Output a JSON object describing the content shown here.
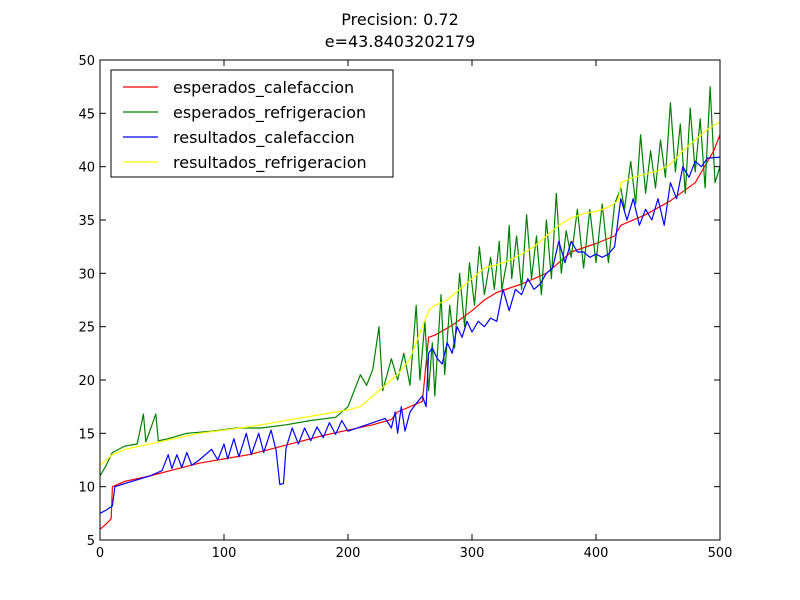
{
  "chart_data": {
    "type": "line",
    "title": "Precision: 0.72",
    "subtitle": "e=43.8403202179",
    "xlabel": "",
    "ylabel": "",
    "xlim": [
      0,
      500
    ],
    "ylim": [
      5,
      50
    ],
    "xticks": [
      0,
      100,
      200,
      300,
      400,
      500
    ],
    "yticks": [
      5,
      10,
      15,
      20,
      25,
      30,
      35,
      40,
      45,
      50
    ],
    "grid": false,
    "legend_position": "top-left",
    "series": [
      {
        "name": "esperados_calefaccion",
        "color": "#ff0000",
        "points": [
          [
            0,
            6.0
          ],
          [
            5,
            6.5
          ],
          [
            9,
            7.0
          ],
          [
            10,
            10.0
          ],
          [
            20,
            10.5
          ],
          [
            40,
            11.0
          ],
          [
            60,
            11.6
          ],
          [
            80,
            12.2
          ],
          [
            100,
            12.6
          ],
          [
            120,
            13.0
          ],
          [
            140,
            13.6
          ],
          [
            160,
            14.2
          ],
          [
            180,
            14.8
          ],
          [
            200,
            15.3
          ],
          [
            220,
            15.8
          ],
          [
            235,
            16.3
          ],
          [
            240,
            17.0
          ],
          [
            250,
            17.5
          ],
          [
            260,
            18.0
          ],
          [
            265,
            24.0
          ],
          [
            270,
            24.2
          ],
          [
            285,
            25.2
          ],
          [
            300,
            26.5
          ],
          [
            310,
            27.5
          ],
          [
            320,
            28.2
          ],
          [
            340,
            29.0
          ],
          [
            360,
            30.0
          ],
          [
            375,
            31.5
          ],
          [
            380,
            32.0
          ],
          [
            400,
            32.8
          ],
          [
            415,
            33.5
          ],
          [
            420,
            34.5
          ],
          [
            440,
            35.5
          ],
          [
            460,
            36.8
          ],
          [
            480,
            38.5
          ],
          [
            495,
            41.5
          ],
          [
            500,
            43.0
          ]
        ]
      },
      {
        "name": "esperados_refrigeracion",
        "color": "#008000",
        "points": [
          [
            0,
            11.0
          ],
          [
            5,
            12.0
          ],
          [
            10,
            13.2
          ],
          [
            20,
            13.8
          ],
          [
            30,
            14.0
          ],
          [
            35,
            16.8
          ],
          [
            37,
            14.2
          ],
          [
            45,
            16.8
          ],
          [
            47,
            14.3
          ],
          [
            55,
            14.5
          ],
          [
            70,
            15.0
          ],
          [
            90,
            15.2
          ],
          [
            110,
            15.5
          ],
          [
            130,
            15.5
          ],
          [
            150,
            15.8
          ],
          [
            170,
            16.2
          ],
          [
            190,
            16.5
          ],
          [
            200,
            17.5
          ],
          [
            205,
            19.0
          ],
          [
            210,
            20.5
          ],
          [
            215,
            19.5
          ],
          [
            220,
            21.0
          ],
          [
            225,
            25.0
          ],
          [
            228,
            19.0
          ],
          [
            235,
            22.0
          ],
          [
            240,
            20.0
          ],
          [
            245,
            22.5
          ],
          [
            250,
            19.5
          ],
          [
            255,
            27.0
          ],
          [
            258,
            20.0
          ],
          [
            262,
            25.5
          ],
          [
            265,
            19.0
          ],
          [
            268,
            23.5
          ],
          [
            270,
            18.5
          ],
          [
            275,
            28.0
          ],
          [
            278,
            20.5
          ],
          [
            282,
            27.0
          ],
          [
            286,
            23.0
          ],
          [
            290,
            30.0
          ],
          [
            294,
            25.0
          ],
          [
            298,
            31.0
          ],
          [
            302,
            27.0
          ],
          [
            306,
            32.5
          ],
          [
            310,
            28.0
          ],
          [
            315,
            31.5
          ],
          [
            318,
            28.5
          ],
          [
            322,
            33.0
          ],
          [
            324,
            28.5
          ],
          [
            328,
            31.0
          ],
          [
            330,
            34.5
          ],
          [
            332,
            29.5
          ],
          [
            336,
            33.5
          ],
          [
            340,
            28.5
          ],
          [
            344,
            35.5
          ],
          [
            348,
            29.5
          ],
          [
            352,
            33.5
          ],
          [
            356,
            28.0
          ],
          [
            360,
            35.0
          ],
          [
            364,
            29.5
          ],
          [
            368,
            37.5
          ],
          [
            372,
            30.0
          ],
          [
            376,
            34.0
          ],
          [
            380,
            31.5
          ],
          [
            385,
            36.0
          ],
          [
            390,
            30.5
          ],
          [
            395,
            36.0
          ],
          [
            400,
            31.0
          ],
          [
            405,
            36.5
          ],
          [
            410,
            31.0
          ],
          [
            415,
            36.5
          ],
          [
            420,
            38.0
          ],
          [
            423,
            36.0
          ],
          [
            428,
            40.5
          ],
          [
            432,
            36.5
          ],
          [
            436,
            43.0
          ],
          [
            440,
            37.5
          ],
          [
            444,
            41.5
          ],
          [
            448,
            38.0
          ],
          [
            452,
            42.5
          ],
          [
            456,
            39.0
          ],
          [
            460,
            46.0
          ],
          [
            464,
            39.5
          ],
          [
            468,
            44.0
          ],
          [
            472,
            37.5
          ],
          [
            476,
            45.5
          ],
          [
            480,
            39.5
          ],
          [
            484,
            44.5
          ],
          [
            488,
            38.0
          ],
          [
            492,
            47.5
          ],
          [
            496,
            38.5
          ],
          [
            500,
            40.0
          ]
        ]
      },
      {
        "name": "resultados_calefaccion",
        "color": "#0000ff",
        "points": [
          [
            0,
            7.5
          ],
          [
            5,
            7.8
          ],
          [
            10,
            8.2
          ],
          [
            12,
            10.0
          ],
          [
            20,
            10.3
          ],
          [
            40,
            11.0
          ],
          [
            50,
            11.5
          ],
          [
            55,
            13.0
          ],
          [
            58,
            11.7
          ],
          [
            62,
            13.0
          ],
          [
            66,
            11.8
          ],
          [
            70,
            13.2
          ],
          [
            74,
            12.0
          ],
          [
            80,
            12.5
          ],
          [
            90,
            13.5
          ],
          [
            95,
            12.5
          ],
          [
            100,
            14.0
          ],
          [
            103,
            12.6
          ],
          [
            108,
            14.5
          ],
          [
            112,
            12.8
          ],
          [
            118,
            15.0
          ],
          [
            122,
            13.0
          ],
          [
            128,
            15.0
          ],
          [
            132,
            13.2
          ],
          [
            138,
            15.3
          ],
          [
            142,
            13.4
          ],
          [
            145,
            10.2
          ],
          [
            148,
            10.3
          ],
          [
            150,
            13.6
          ],
          [
            155,
            15.5
          ],
          [
            160,
            14.0
          ],
          [
            165,
            15.5
          ],
          [
            170,
            14.3
          ],
          [
            175,
            15.6
          ],
          [
            180,
            14.6
          ],
          [
            185,
            16.0
          ],
          [
            190,
            14.9
          ],
          [
            195,
            16.2
          ],
          [
            200,
            15.2
          ],
          [
            210,
            15.6
          ],
          [
            220,
            16.0
          ],
          [
            230,
            16.4
          ],
          [
            235,
            15.5
          ],
          [
            238,
            17.0
          ],
          [
            240,
            15.0
          ],
          [
            243,
            17.5
          ],
          [
            246,
            15.2
          ],
          [
            250,
            17.0
          ],
          [
            255,
            17.8
          ],
          [
            260,
            18.5
          ],
          [
            263,
            17.5
          ],
          [
            265,
            22.5
          ],
          [
            268,
            23.0
          ],
          [
            272,
            22.0
          ],
          [
            276,
            21.5
          ],
          [
            280,
            23.5
          ],
          [
            284,
            22.5
          ],
          [
            288,
            25.0
          ],
          [
            292,
            24.0
          ],
          [
            296,
            25.5
          ],
          [
            300,
            24.5
          ],
          [
            305,
            25.5
          ],
          [
            310,
            25.0
          ],
          [
            315,
            25.8
          ],
          [
            320,
            25.5
          ],
          [
            325,
            28.5
          ],
          [
            330,
            26.5
          ],
          [
            335,
            28.5
          ],
          [
            340,
            28.0
          ],
          [
            345,
            29.5
          ],
          [
            350,
            28.5
          ],
          [
            355,
            29.0
          ],
          [
            360,
            30.0
          ],
          [
            365,
            30.5
          ],
          [
            370,
            33.0
          ],
          [
            375,
            31.0
          ],
          [
            380,
            33.0
          ],
          [
            385,
            32.0
          ],
          [
            390,
            32.0
          ],
          [
            395,
            31.5
          ],
          [
            400,
            31.8
          ],
          [
            405,
            31.5
          ],
          [
            410,
            31.8
          ],
          [
            415,
            32.5
          ],
          [
            420,
            37.0
          ],
          [
            425,
            35.0
          ],
          [
            430,
            37.0
          ],
          [
            435,
            34.5
          ],
          [
            440,
            36.0
          ],
          [
            445,
            35.0
          ],
          [
            450,
            37.0
          ],
          [
            455,
            34.5
          ],
          [
            460,
            38.5
          ],
          [
            465,
            37.0
          ],
          [
            470,
            40.0
          ],
          [
            475,
            39.0
          ],
          [
            480,
            40.5
          ],
          [
            485,
            40.0
          ],
          [
            490,
            40.8
          ],
          [
            500,
            40.9
          ]
        ]
      },
      {
        "name": "resultados_refrigeracion",
        "color": "#ffff00",
        "points": [
          [
            0,
            12.0
          ],
          [
            10,
            13.0
          ],
          [
            20,
            13.5
          ],
          [
            40,
            14.0
          ],
          [
            60,
            14.5
          ],
          [
            80,
            15.0
          ],
          [
            100,
            15.3
          ],
          [
            120,
            15.6
          ],
          [
            140,
            16.0
          ],
          [
            160,
            16.4
          ],
          [
            180,
            16.8
          ],
          [
            200,
            17.2
          ],
          [
            210,
            17.5
          ],
          [
            220,
            18.5
          ],
          [
            230,
            19.5
          ],
          [
            240,
            20.5
          ],
          [
            250,
            22.0
          ],
          [
            255,
            23.5
          ],
          [
            260,
            25.0
          ],
          [
            265,
            26.5
          ],
          [
            270,
            27.0
          ],
          [
            280,
            27.5
          ],
          [
            290,
            28.5
          ],
          [
            300,
            29.5
          ],
          [
            310,
            30.5
          ],
          [
            320,
            30.8
          ],
          [
            330,
            31.2
          ],
          [
            340,
            31.8
          ],
          [
            350,
            32.5
          ],
          [
            360,
            33.5
          ],
          [
            370,
            34.5
          ],
          [
            380,
            35.2
          ],
          [
            390,
            35.6
          ],
          [
            400,
            35.8
          ],
          [
            410,
            36.2
          ],
          [
            418,
            36.8
          ],
          [
            420,
            38.5
          ],
          [
            430,
            39.0
          ],
          [
            440,
            39.3
          ],
          [
            450,
            39.6
          ],
          [
            460,
            40.2
          ],
          [
            470,
            41.5
          ],
          [
            480,
            42.5
          ],
          [
            490,
            43.5
          ],
          [
            500,
            44.2
          ]
        ]
      }
    ]
  }
}
